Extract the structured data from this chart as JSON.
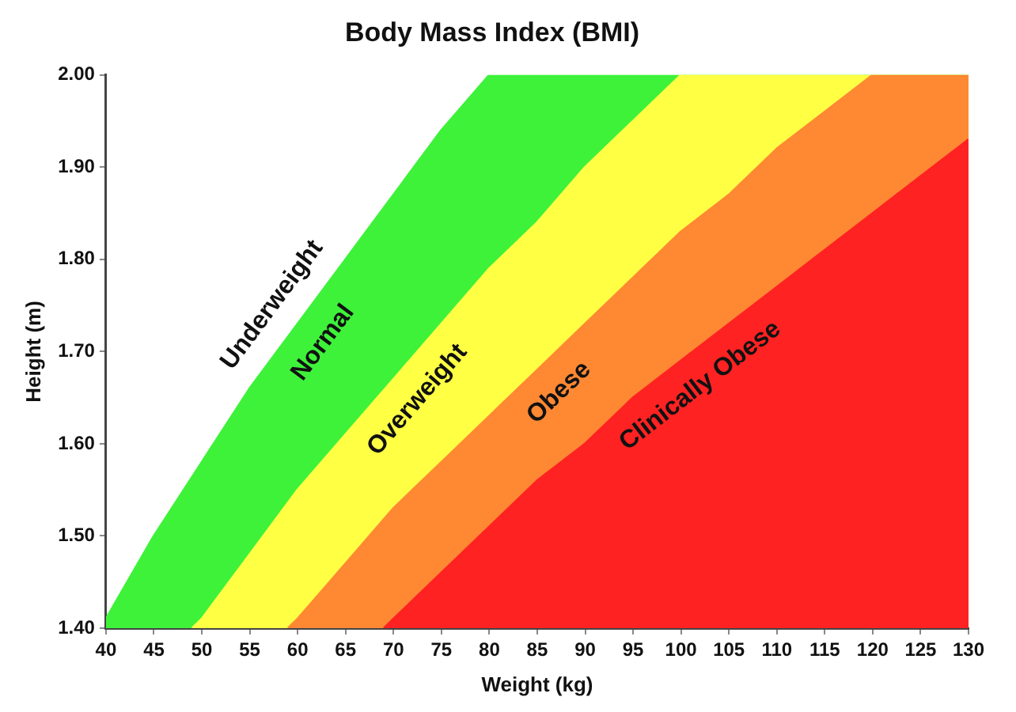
{
  "chart_data": {
    "type": "area",
    "title": "Body Mass Index (BMI)",
    "xlabel": "Weight (kg)",
    "ylabel": "Height (m)",
    "annotations": [
      "Underweight"
    ],
    "series": [
      {
        "name": "Normal",
        "color": "#3ef23a",
        "x": [
          40,
          45,
          50,
          55,
          60,
          65,
          70,
          75,
          80,
          130
        ],
        "values": [
          1.41,
          1.5,
          1.58,
          1.66,
          1.73,
          1.8,
          1.87,
          1.94,
          2.0,
          2.0
        ]
      },
      {
        "name": "Overweight",
        "color": "#ffff44",
        "x": [
          49,
          50,
          55,
          60,
          65,
          70,
          75,
          80,
          85,
          90,
          95,
          100,
          130
        ],
        "values": [
          1.4,
          1.41,
          1.48,
          1.55,
          1.61,
          1.67,
          1.73,
          1.79,
          1.84,
          1.9,
          1.95,
          2.0,
          2.0
        ]
      },
      {
        "name": "Obese",
        "color": "#ff8833",
        "x": [
          59,
          60,
          65,
          70,
          75,
          80,
          85,
          90,
          95,
          100,
          105,
          110,
          115,
          120,
          130
        ],
        "values": [
          1.4,
          1.41,
          1.47,
          1.53,
          1.58,
          1.63,
          1.68,
          1.73,
          1.78,
          1.83,
          1.87,
          1.92,
          1.96,
          2.0,
          2.0
        ]
      },
      {
        "name": "Clinically Obese",
        "color": "#ff2222",
        "x": [
          69,
          70,
          75,
          80,
          85,
          90,
          95,
          100,
          105,
          110,
          115,
          120,
          125,
          130
        ],
        "values": [
          1.4,
          1.41,
          1.46,
          1.51,
          1.56,
          1.6,
          1.65,
          1.69,
          1.73,
          1.77,
          1.81,
          1.85,
          1.89,
          1.93
        ]
      }
    ],
    "xlim": [
      40,
      130
    ],
    "xticks": [
      40,
      45,
      50,
      55,
      60,
      65,
      70,
      75,
      80,
      85,
      90,
      95,
      100,
      105,
      110,
      115,
      120,
      125,
      130
    ],
    "ylim": [
      1.4,
      2.0
    ],
    "yticks": [
      {
        "value": 1.4,
        "label": "1.40"
      },
      {
        "value": 1.5,
        "label": "1.50"
      },
      {
        "value": 1.6,
        "label": "1.60"
      },
      {
        "value": 1.7,
        "label": "1.70"
      },
      {
        "value": 1.8,
        "label": "1.80"
      },
      {
        "value": 1.9,
        "label": "1.90"
      },
      {
        "value": 2.0,
        "label": "2.00"
      }
    ],
    "grid": false,
    "legend": false,
    "marker": "none",
    "line_style": "solid"
  }
}
